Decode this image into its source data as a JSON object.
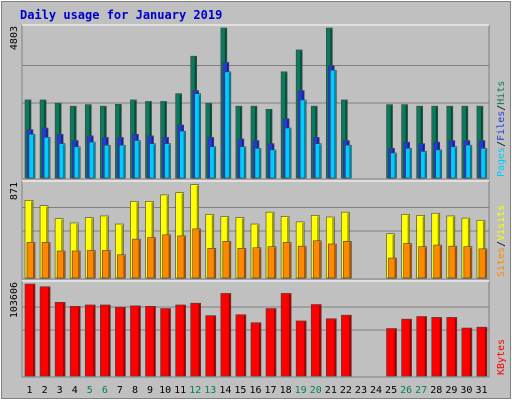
{
  "chart_data": {
    "type": "bar",
    "title": "Daily usage for January 2019",
    "categories": [
      "1",
      "2",
      "3",
      "4",
      "5",
      "6",
      "7",
      "8",
      "9",
      "10",
      "11",
      "12",
      "13",
      "14",
      "15",
      "16",
      "17",
      "18",
      "19",
      "20",
      "21",
      "22",
      "23",
      "24",
      "25",
      "26",
      "27",
      "28",
      "29",
      "30",
      "31"
    ],
    "weekend_days": [
      "5",
      "6",
      "12",
      "13",
      "19",
      "20",
      "26",
      "27"
    ],
    "panels": [
      {
        "id": "hits-files-pages",
        "ymax_label": "4803",
        "ymax": 4803,
        "legend": [
          "Pages",
          "/",
          "Files",
          "/",
          "Hits"
        ],
        "series": [
          {
            "name": "Hits",
            "color": "#0c7a5d",
            "values": [
              2500,
              2500,
              2400,
              2300,
              2350,
              2300,
              2360,
              2500,
              2450,
              2450,
              2700,
              3900,
              2400,
              4803,
              2300,
              2300,
              2200,
              3400,
              4100,
              2300,
              4803,
              2500,
              0,
              0,
              2350,
              2350,
              2300,
              2300,
              2300,
              2300,
              2300
            ]
          },
          {
            "name": "Files",
            "color": "#1f3bdb",
            "values": [
              1550,
              1600,
              1400,
              1200,
              1350,
              1300,
              1300,
              1400,
              1350,
              1300,
              1700,
              2800,
              1300,
              3700,
              1250,
              1200,
              1100,
              1900,
              2800,
              1300,
              3600,
              1200,
              0,
              0,
              950,
              1150,
              1100,
              1150,
              1200,
              1200,
              1200
            ]
          },
          {
            "name": "Pages",
            "color": "#00ccff",
            "values": [
              1400,
              1300,
              1100,
              1000,
              1150,
              1050,
              1050,
              1200,
              1100,
              1100,
              1500,
              2700,
              1000,
              3400,
              1000,
              950,
              900,
              1600,
              2500,
              1100,
              3450,
              1050,
              0,
              0,
              800,
              950,
              850,
              900,
              1000,
              1050,
              950
            ]
          }
        ]
      },
      {
        "id": "visits-sites",
        "ymax_label": "871",
        "ymax": 871,
        "legend": [
          "Sites",
          "/",
          "Visits"
        ],
        "series": [
          {
            "name": "Visits",
            "color": "#ffff00",
            "values": [
              720,
              670,
              550,
              510,
              560,
              575,
              500,
              710,
              710,
              770,
              790,
              865,
              590,
              570,
              560,
              500,
              610,
              570,
              520,
              580,
              565,
              610,
              0,
              0,
              410,
              590,
              580,
              600,
              575,
              555,
              535
            ]
          },
          {
            "name": "Sites",
            "color": "#ff8800",
            "values": [
              330,
              330,
              250,
              250,
              255,
              255,
              215,
              360,
              375,
              400,
              390,
              455,
              275,
              340,
              275,
              280,
              290,
              330,
              295,
              345,
              315,
              340,
              0,
              0,
              185,
              320,
              290,
              305,
              295,
              290,
              270
            ]
          }
        ]
      },
      {
        "id": "kbytes",
        "ymax_label": "103606",
        "ymax": 103606,
        "legend": [
          "KBytes"
        ],
        "series": [
          {
            "name": "KBytes",
            "color": "#ff0000",
            "values": [
              103606,
              100500,
              83000,
              78500,
              80000,
              80000,
              77500,
              79000,
              78500,
              76000,
              80000,
              82000,
              68000,
              93000,
              69000,
              60000,
              76000,
              93000,
              62000,
              80500,
              64500,
              68500,
              0,
              0,
              53500,
              64000,
              67000,
              66000,
              66000,
              54000,
              55000
            ]
          }
        ]
      }
    ]
  }
}
